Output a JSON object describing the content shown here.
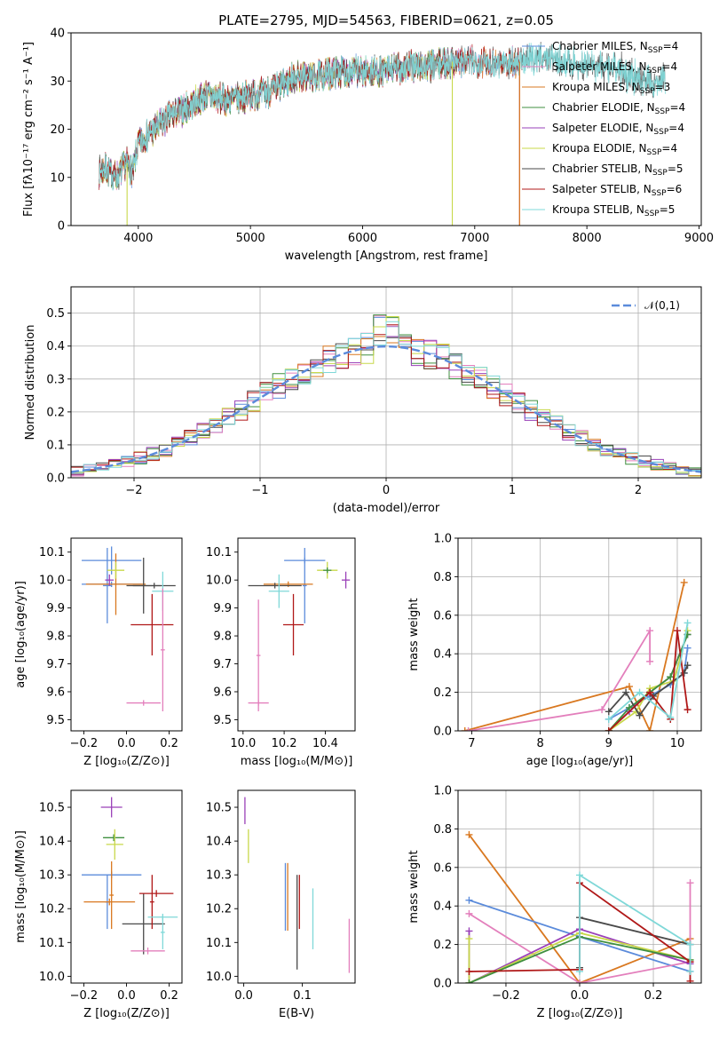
{
  "chart_data": [
    {
      "id": "spectrum",
      "type": "line",
      "title": "PLATE=2795, MJD=54563, FIBERID=0621, z=0.05",
      "xlabel": "wavelength [Angstrom, rest frame]",
      "ylabel": "Flux [fλ10⁻¹⁷ erg cm⁻² s⁻¹ A⁻¹]",
      "xlim": [
        3400,
        9020
      ],
      "ylim": [
        0,
        40
      ],
      "xticks": [
        4000,
        5000,
        6000,
        7000,
        8000,
        9000
      ],
      "yticks": [
        0,
        10,
        20,
        30,
        40
      ],
      "grid": false,
      "legend_position": "top-right",
      "continuum": {
        "x": [
          3650,
          3700,
          3800,
          3900,
          3950,
          4000,
          4100,
          4200,
          4300,
          4400,
          4600,
          4800,
          5000,
          5200,
          5400,
          5600,
          5800,
          6000,
          6200,
          6400,
          6600,
          6800,
          7000,
          7200,
          7400,
          7600,
          7800,
          8000,
          8200,
          8400,
          8600,
          8700
        ],
        "y": [
          11,
          12,
          10,
          13,
          11,
          17,
          19,
          21,
          23,
          24,
          27,
          26,
          27,
          28,
          31,
          31,
          32,
          32,
          32,
          33,
          33,
          34,
          34,
          34,
          34,
          35,
          34,
          33,
          33,
          31,
          30,
          30
        ]
      },
      "series": [
        {
          "name": "Chabrier MILES, N",
          "nssp": "4",
          "color": "#5b8bdb",
          "range": [
            3650,
            7400
          ]
        },
        {
          "name": "Salpeter MILES, N",
          "nssp": "4",
          "color": "#e37fbc",
          "range": [
            3650,
            7400
          ]
        },
        {
          "name": "Kroupa MILES, N",
          "nssp": "3",
          "color": "#d97820",
          "range": [
            3650,
            7400
          ]
        },
        {
          "name": "Chabrier ELODIE, N",
          "nssp": "4",
          "color": "#3f8f3f",
          "range": [
            3650,
            6800
          ]
        },
        {
          "name": "Salpeter ELODIE, N",
          "nssp": "4",
          "color": "#9a40b8",
          "range": [
            3650,
            6800
          ]
        },
        {
          "name": "Kroupa ELODIE, N",
          "nssp": "4",
          "color": "#c8d84a",
          "range": [
            3650,
            6800
          ]
        },
        {
          "name": "Chabrier STELIB, N",
          "nssp": "5",
          "color": "#4a4a4a",
          "range": [
            3650,
            8700
          ]
        },
        {
          "name": "Salpeter STELIB, N",
          "nssp": "6",
          "color": "#b01818",
          "range": [
            3650,
            7400
          ]
        },
        {
          "name": "Kroupa STELIB, N",
          "nssp": "5",
          "color": "#7fd8d8",
          "range": [
            3650,
            8700
          ]
        }
      ]
    },
    {
      "id": "residuals",
      "type": "histogram",
      "xlabel": "(data-model)/error",
      "ylabel": "Normed distribution",
      "xlim": [
        -2.5,
        2.5
      ],
      "ylim": [
        0,
        0.58
      ],
      "xticks": [
        -2,
        -1,
        0,
        1,
        2
      ],
      "yticks": [
        0.0,
        0.1,
        0.2,
        0.3,
        0.4,
        0.5
      ],
      "grid": true,
      "bin_width": 0.1,
      "legend_position": "top-right",
      "reference_curve": {
        "label": "𝒩(0,1)",
        "mean": 0,
        "sigma": 1,
        "color": "#5b8bdb"
      }
    },
    {
      "id": "age-vs-Z",
      "type": "errorbar",
      "xlabel": "Z [log₁₀(Z/Z⊙)]",
      "ylabel": "age  [log₁₀(age/yr)]",
      "xlim": [
        -0.26,
        0.26
      ],
      "ylim": [
        9.46,
        10.15
      ],
      "xticks": [
        -0.2,
        0.0,
        0.2
      ],
      "yticks": [
        9.5,
        9.6,
        9.7,
        9.8,
        9.9,
        10.0,
        10.1
      ],
      "grid": false,
      "points": [
        {
          "x": -0.07,
          "xerr": 0.14,
          "y": 10.07,
          "yerr": 0.05,
          "color": "#5b8bdb"
        },
        {
          "x": -0.07,
          "xerr": 0.14,
          "y": 9.985,
          "yerr": 0.01,
          "color": "#5b8bdb"
        },
        {
          "x": -0.09,
          "xerr": 0.02,
          "y": 9.98,
          "yerr": 0.135,
          "color": "#5b8bdb"
        },
        {
          "x": -0.05,
          "xerr": 0.14,
          "y": 9.985,
          "yerr": 0.11,
          "color": "#d97820"
        },
        {
          "x": -0.05,
          "xerr": 0.04,
          "y": 10.035,
          "yerr": 0.03,
          "color": "#c8d84a"
        },
        {
          "x": -0.08,
          "xerr": 0.02,
          "y": 10.0,
          "yerr": 0.02,
          "color": "#9a40b8"
        },
        {
          "x": 0.08,
          "xerr": 0.08,
          "y": 9.98,
          "yerr": 0.1,
          "color": "#4a4a4a"
        },
        {
          "x": 0.13,
          "xerr": 0.1,
          "y": 9.98,
          "yerr": 0.01,
          "color": "#4a4a4a"
        },
        {
          "x": 0.12,
          "xerr": 0.1,
          "y": 9.84,
          "yerr": 0.11,
          "color": "#b01818"
        },
        {
          "x": 0.17,
          "xerr": 0.05,
          "y": 9.96,
          "yerr": 0.07,
          "color": "#7fd8d8"
        },
        {
          "x": 0.08,
          "xerr": 0.08,
          "y": 9.56,
          "yerr": 0.01,
          "color": "#e37fbc"
        },
        {
          "x": 0.17,
          "xerr": 0.01,
          "y": 9.75,
          "yerr": 0.22,
          "color": "#e37fbc"
        }
      ]
    },
    {
      "id": "age-vs-mass",
      "type": "errorbar",
      "xlabel": "mass [log₁₀(M/M⊙)]",
      "xlim": [
        9.975,
        10.545
      ],
      "ylim": [
        9.46,
        10.15
      ],
      "xticks": [
        10.0,
        10.2,
        10.4
      ],
      "yticks": [
        9.5,
        9.6,
        9.7,
        9.8,
        9.9,
        10.0,
        10.1
      ],
      "grid": false,
      "points": [
        {
          "x": 10.3,
          "xerr": 0.1,
          "y": 10.07,
          "yerr": 0.01,
          "color": "#5b8bdb"
        },
        {
          "x": 10.3,
          "xerr": 0.01,
          "y": 9.98,
          "yerr": 0.135,
          "color": "#5b8bdb"
        },
        {
          "x": 10.22,
          "xerr": 0.12,
          "y": 9.985,
          "yerr": 0.01,
          "color": "#d97820"
        },
        {
          "x": 10.41,
          "xerr": 0.05,
          "y": 10.035,
          "yerr": 0.03,
          "color": "#c8d84a"
        },
        {
          "x": 10.41,
          "xerr": 0.02,
          "y": 10.035,
          "yerr": 0.01,
          "color": "#3f8f3f"
        },
        {
          "x": 10.5,
          "xerr": 0.02,
          "y": 10.0,
          "yerr": 0.03,
          "color": "#9a40b8"
        },
        {
          "x": 10.155,
          "xerr": 0.13,
          "y": 9.98,
          "yerr": 0.01,
          "color": "#4a4a4a"
        },
        {
          "x": 10.245,
          "xerr": 0.05,
          "y": 9.84,
          "yerr": 0.11,
          "color": "#b01818"
        },
        {
          "x": 10.175,
          "xerr": 0.05,
          "y": 9.96,
          "yerr": 0.06,
          "color": "#7fd8d8"
        },
        {
          "x": 10.075,
          "xerr": 0.05,
          "y": 9.56,
          "yerr": 0.01,
          "color": "#e37fbc"
        },
        {
          "x": 10.075,
          "xerr": 0.01,
          "y": 9.73,
          "yerr": 0.2,
          "color": "#e37fbc"
        }
      ]
    },
    {
      "id": "massweight-vs-age",
      "type": "line",
      "xlabel": "age  [log₁₀(age/yr)]",
      "ylabel": "mass weight",
      "xlim": [
        6.8,
        10.35
      ],
      "ylim": [
        0,
        1.0
      ],
      "xticks": [
        7,
        8,
        9,
        10
      ],
      "yticks": [
        0.0,
        0.2,
        0.4,
        0.6,
        0.8,
        1.0
      ],
      "grid": true,
      "series": [
        {
          "color": "#d97820",
          "x": [
            6.9,
            9.3,
            9.6,
            10.1
          ],
          "y": [
            0.0,
            0.23,
            0.0,
            0.77
          ]
        },
        {
          "color": "#e37fbc",
          "x": [
            6.95,
            8.9,
            9.6,
            9.6
          ],
          "y": [
            0.0,
            0.11,
            0.52,
            0.36
          ]
        },
        {
          "color": "#5b8bdb",
          "x": [
            9.0,
            9.3,
            9.6,
            9.9,
            10.1,
            10.15
          ],
          "y": [
            0.06,
            0.12,
            0.18,
            0.24,
            0.3,
            0.43
          ]
        },
        {
          "color": "#9a40b8",
          "x": [
            9.0,
            9.3,
            9.6,
            9.9,
            10.15
          ],
          "y": [
            0.0,
            0.1,
            0.2,
            0.28,
            0.5
          ]
        },
        {
          "color": "#c8d84a",
          "x": [
            9.0,
            9.4,
            9.6,
            9.95,
            10.15
          ],
          "y": [
            0.0,
            0.1,
            0.22,
            0.26,
            0.52
          ]
        },
        {
          "color": "#3f8f3f",
          "x": [
            9.0,
            9.3,
            9.6,
            9.9,
            10.15
          ],
          "y": [
            0.0,
            0.12,
            0.2,
            0.28,
            0.5
          ]
        },
        {
          "color": "#4a4a4a",
          "x": [
            9.0,
            9.25,
            9.45,
            9.65,
            10.1,
            10.15
          ],
          "y": [
            0.1,
            0.2,
            0.08,
            0.18,
            0.3,
            0.34
          ]
        },
        {
          "color": "#b01818",
          "x": [
            9.0,
            9.6,
            9.9,
            10.0,
            10.15
          ],
          "y": [
            0.0,
            0.2,
            0.06,
            0.52,
            0.11
          ]
        },
        {
          "color": "#7fd8d8",
          "x": [
            9.0,
            9.45,
            9.9,
            10.15
          ],
          "y": [
            0.06,
            0.2,
            0.07,
            0.56
          ]
        }
      ]
    },
    {
      "id": "mass-vs-Z",
      "type": "errorbar",
      "xlabel": "Z [log₁₀(Z/Z⊙)]",
      "ylabel": "mass [log₁₀(M/M⊙)]",
      "xlim": [
        -0.26,
        0.26
      ],
      "ylim": [
        9.98,
        10.55
      ],
      "xticks": [
        -0.2,
        0.0,
        0.2
      ],
      "yticks": [
        10.0,
        10.1,
        10.2,
        10.3,
        10.4,
        10.5
      ],
      "grid": false,
      "points": [
        {
          "x": -0.07,
          "xerr": 0.14,
          "y": 10.3,
          "yerr": 0.01,
          "color": "#5b8bdb"
        },
        {
          "x": -0.09,
          "xerr": 0.01,
          "y": 10.22,
          "yerr": 0.08,
          "color": "#5b8bdb"
        },
        {
          "x": -0.08,
          "xerr": 0.12,
          "y": 10.22,
          "yerr": 0.01,
          "color": "#d97820"
        },
        {
          "x": -0.07,
          "xerr": 0.01,
          "y": 10.24,
          "yerr": 0.1,
          "color": "#d97820"
        },
        {
          "x": -0.06,
          "xerr": 0.05,
          "y": 10.41,
          "yerr": 0.01,
          "color": "#3f8f3f"
        },
        {
          "x": -0.055,
          "xerr": 0.04,
          "y": 10.39,
          "yerr": 0.045,
          "color": "#c8d84a"
        },
        {
          "x": -0.07,
          "xerr": 0.05,
          "y": 10.5,
          "yerr": 0.03,
          "color": "#9a40b8"
        },
        {
          "x": 0.08,
          "xerr": 0.1,
          "y": 10.155,
          "yerr": 0.09,
          "color": "#4a4a4a"
        },
        {
          "x": 0.14,
          "xerr": 0.08,
          "y": 10.245,
          "yerr": 0.01,
          "color": "#b01818"
        },
        {
          "x": 0.12,
          "xerr": 0.01,
          "y": 10.22,
          "yerr": 0.08,
          "color": "#b01818"
        },
        {
          "x": 0.17,
          "xerr": 0.07,
          "y": 10.175,
          "yerr": 0.01,
          "color": "#7fd8d8"
        },
        {
          "x": 0.17,
          "xerr": 0.01,
          "y": 10.13,
          "yerr": 0.05,
          "color": "#7fd8d8"
        },
        {
          "x": 0.1,
          "xerr": 0.08,
          "y": 10.075,
          "yerr": 0.01,
          "color": "#e37fbc"
        }
      ]
    },
    {
      "id": "mass-vs-EBV",
      "type": "errorbar",
      "xlabel": "E(B-V)",
      "xlim": [
        -0.01,
        0.19
      ],
      "ylim": [
        9.98,
        10.55
      ],
      "xticks": [
        0.0,
        0.1
      ],
      "yticks": [
        10.0,
        10.1,
        10.2,
        10.3,
        10.4,
        10.5
      ],
      "grid": false,
      "points": [
        {
          "x": 0.002,
          "xerr": 0.0,
          "y": 10.49,
          "yerr": 0.04,
          "color": "#9a40b8"
        },
        {
          "x": 0.008,
          "xerr": 0.0,
          "y": 10.385,
          "yerr": 0.05,
          "color": "#c8d84a"
        },
        {
          "x": 0.071,
          "xerr": 0.0,
          "y": 10.235,
          "yerr": 0.1,
          "color": "#5b8bdb"
        },
        {
          "x": 0.075,
          "xerr": 0.0,
          "y": 10.235,
          "yerr": 0.1,
          "color": "#d97820"
        },
        {
          "x": 0.091,
          "xerr": 0.0,
          "y": 10.16,
          "yerr": 0.14,
          "color": "#4a4a4a"
        },
        {
          "x": 0.095,
          "xerr": 0.0,
          "y": 10.22,
          "yerr": 0.08,
          "color": "#b01818"
        },
        {
          "x": 0.118,
          "xerr": 0.0,
          "y": 10.17,
          "yerr": 0.09,
          "color": "#7fd8d8"
        },
        {
          "x": 0.18,
          "xerr": 0.0,
          "y": 10.09,
          "yerr": 0.08,
          "color": "#e37fbc"
        }
      ]
    },
    {
      "id": "massweight-vs-Z",
      "type": "line",
      "xlabel": "Z [log₁₀(Z/Z⊙)]",
      "ylabel": "mass weight",
      "xlim": [
        -0.33,
        0.33
      ],
      "ylim": [
        0,
        1.0
      ],
      "xticks": [
        -0.2,
        0.0,
        0.2
      ],
      "yticks": [
        0.0,
        0.2,
        0.4,
        0.6,
        0.8,
        1.0
      ],
      "grid": true,
      "series": [
        {
          "color": "#d97820",
          "x": [
            -0.3,
            0.0,
            0.3
          ],
          "y": [
            0.77,
            0.0,
            0.23
          ]
        },
        {
          "color": "#5b8bdb",
          "x": [
            -0.3,
            0.0,
            0.3
          ],
          "y": [
            0.43,
            0.24,
            0.06
          ]
        },
        {
          "color": "#e37fbc",
          "x": [
            -0.3,
            0.0,
            0.3,
            0.3
          ],
          "y": [
            0.36,
            0.0,
            0.11,
            0.52
          ]
        },
        {
          "color": "#9a40b8",
          "x": [
            -0.3,
            -0.3,
            0.0,
            0.3
          ],
          "y": [
            0.27,
            0.0,
            0.28,
            0.1
          ]
        },
        {
          "color": "#c8d84a",
          "x": [
            -0.3,
            -0.3,
            0.0,
            0.3
          ],
          "y": [
            0.23,
            0.0,
            0.26,
            0.12
          ]
        },
        {
          "color": "#3f8f3f",
          "x": [
            -0.3,
            0.0,
            0.3
          ],
          "y": [
            0.0,
            0.24,
            0.12
          ]
        },
        {
          "color": "#4a4a4a",
          "x": [
            0.0,
            0.0,
            0.3
          ],
          "y": [
            0.08,
            0.34,
            0.2
          ]
        },
        {
          "color": "#b01818",
          "x": [
            -0.3,
            0.0,
            0.0,
            0.3,
            0.3
          ],
          "y": [
            0.06,
            0.07,
            0.52,
            0.11,
            0.01
          ]
        },
        {
          "color": "#7fd8d8",
          "x": [
            0.0,
            0.0,
            0.3,
            0.3
          ],
          "y": [
            0.06,
            0.56,
            0.2,
            0.06
          ]
        }
      ]
    }
  ]
}
